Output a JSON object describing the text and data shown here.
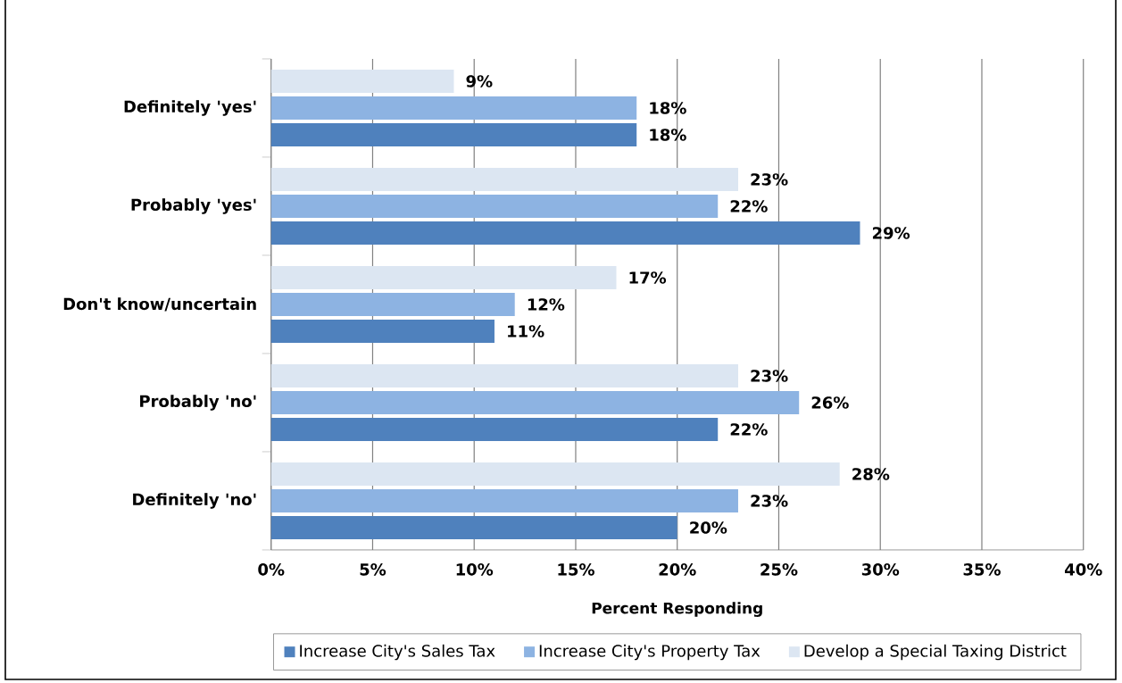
{
  "chart_data": {
    "type": "bar",
    "orientation": "horizontal",
    "xlabel": "Percent Responding",
    "categories": [
      "Definitely 'yes'",
      "Probably 'yes'",
      "Don't know/uncertain",
      "Probably 'no'",
      "Definitely 'no'"
    ],
    "series": [
      {
        "name": "Increase City's Sales Tax",
        "color": "#4f81bd",
        "values": [
          18,
          29,
          11,
          22,
          20
        ],
        "value_labels": [
          "18%",
          "29%",
          "11%",
          "22%",
          "20%"
        ]
      },
      {
        "name": "Increase City's Property Tax",
        "color": "#8db3e2",
        "values": [
          18,
          22,
          12,
          26,
          23
        ],
        "value_labels": [
          "18%",
          "22%",
          "12%",
          "26%",
          "23%"
        ]
      },
      {
        "name": "Develop a Special Taxing District",
        "color": "#dce6f2",
        "values": [
          9,
          23,
          17,
          23,
          28
        ],
        "value_labels": [
          "9%",
          "23%",
          "17%",
          "23%",
          "28%"
        ]
      }
    ],
    "xlim": [
      0,
      40
    ],
    "xticks": [
      {
        "value": 0,
        "label": "0%"
      },
      {
        "value": 5,
        "label": "5%"
      },
      {
        "value": 10,
        "label": "10%"
      },
      {
        "value": 15,
        "label": "15%"
      },
      {
        "value": 20,
        "label": "20%"
      },
      {
        "value": 25,
        "label": "25%"
      },
      {
        "value": 30,
        "label": "30%"
      },
      {
        "value": 35,
        "label": "35%"
      },
      {
        "value": 40,
        "label": "40%"
      }
    ],
    "grid": "x",
    "legend": "bottom"
  }
}
